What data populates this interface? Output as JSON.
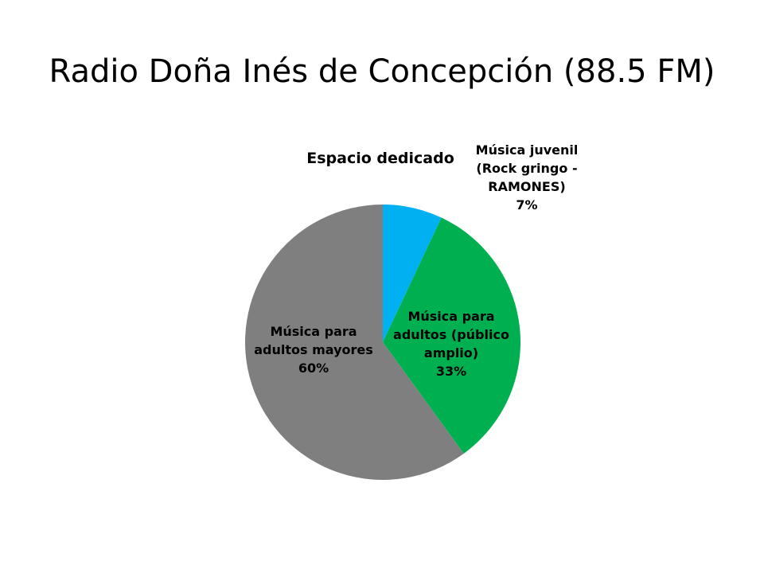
{
  "slide": {
    "title": "Radio Doña Inés de Concepción (88.5 FM)"
  },
  "colors": {
    "juvenil": "#00B0F0",
    "adultos_amplio": "#00B050",
    "adultos_mayores": "#7F7F7F"
  },
  "chart_data": {
    "type": "pie",
    "title": "Espacio dedicado",
    "slices": [
      {
        "label_lines": [
          "Música juvenil",
          "(Rock gringo -",
          "RAMONES)"
        ],
        "percent_label": "7%",
        "value": 7,
        "color": "#00B0F0"
      },
      {
        "label_lines": [
          "Música para",
          "adultos (público",
          "amplio)"
        ],
        "percent_label": "33%",
        "value": 33,
        "color": "#00B050"
      },
      {
        "label_lines": [
          "Música para",
          "adultos mayores"
        ],
        "percent_label": "60%",
        "value": 60,
        "color": "#7F7F7F"
      }
    ],
    "legend": "none",
    "data_labels": "category name and percentage"
  }
}
